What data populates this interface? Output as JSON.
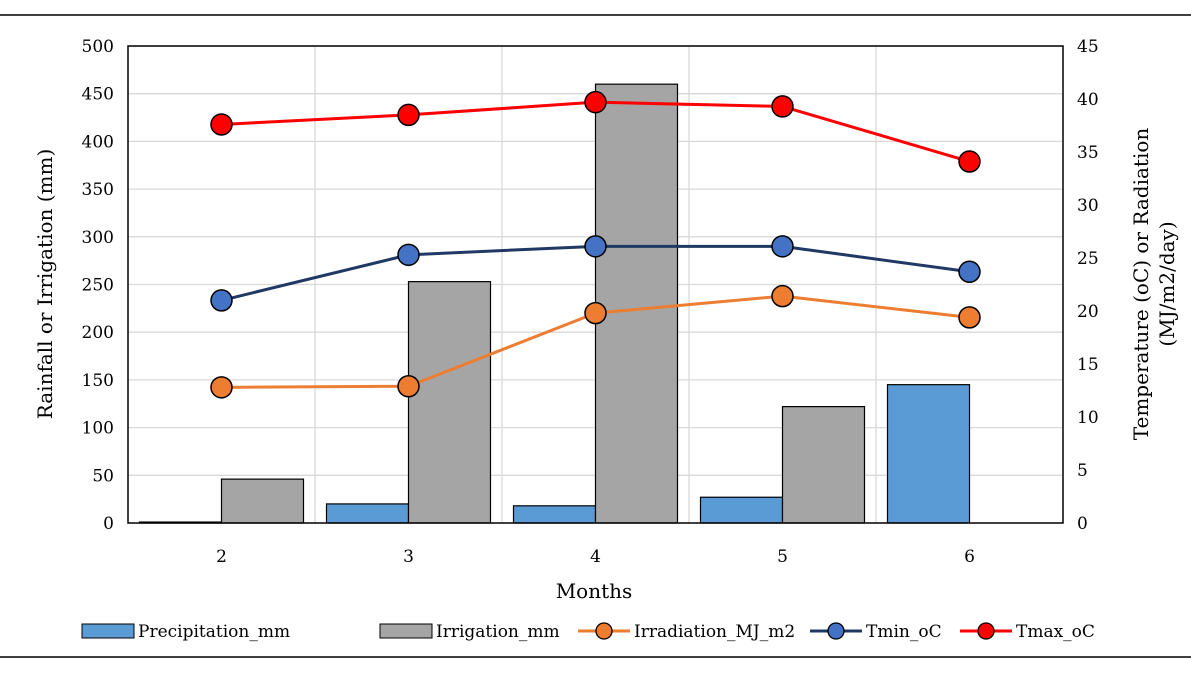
{
  "chart_data": {
    "type": "bar",
    "title": "",
    "xlabel": "Months",
    "ylabel": "Rainfall or Irrigation (mm)",
    "y2label_line1": "Temperature (oC) or Radiation",
    "y2label_line2": "(MJ/m2/day)",
    "categories": [
      "2",
      "3",
      "4",
      "5",
      "6"
    ],
    "ylim": [
      0,
      500
    ],
    "yticks": [
      "0",
      "50",
      "100",
      "150",
      "200",
      "250",
      "300",
      "350",
      "400",
      "450",
      "500"
    ],
    "y2lim": [
      0,
      45
    ],
    "y2ticks": [
      "0",
      "5",
      "10",
      "15",
      "20",
      "25",
      "30",
      "35",
      "40",
      "45"
    ],
    "grid": true,
    "legend_position": "bottom",
    "bar_series": [
      {
        "name": "Precipitation_mm",
        "color": "#5b9bd5",
        "values": [
          1,
          20,
          18,
          27,
          145
        ]
      },
      {
        "name": "Irrigation_mm",
        "color": "#a5a5a5",
        "values": [
          46,
          253,
          460,
          122,
          0
        ]
      }
    ],
    "line_series": [
      {
        "name": "Irradiation_MJ_m2",
        "color": "#ed7d31",
        "values": [
          12.8,
          12.9,
          19.8,
          21.4,
          19.4
        ]
      },
      {
        "name": "Tmin_oC",
        "color": "#203864",
        "marker_color": "#4472c4",
        "values": [
          21.0,
          25.3,
          26.1,
          26.1,
          23.7
        ]
      },
      {
        "name": "Tmax_oC",
        "color": "#ff0000",
        "marker_color": "#ff0000",
        "values": [
          37.6,
          38.5,
          39.7,
          39.3,
          34.1
        ]
      }
    ]
  }
}
